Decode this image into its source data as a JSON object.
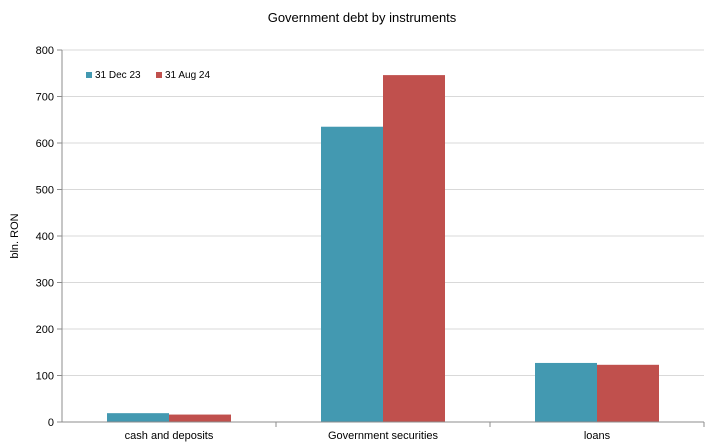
{
  "chart_data": {
    "type": "bar",
    "title": "Government debt by instruments",
    "ylabel": "bln. RON",
    "xlabel": "",
    "categories": [
      "cash and deposits",
      "Government securities",
      "loans"
    ],
    "series": [
      {
        "name": "31 Dec 23",
        "color": "#4399b1",
        "values": [
          19,
          635,
          127
        ]
      },
      {
        "name": "31 Aug 24",
        "color": "#c0504d",
        "values": [
          16,
          746,
          123
        ]
      }
    ],
    "ylim": [
      0,
      800
    ],
    "yticks": [
      "0",
      "100",
      "200",
      "300",
      "400",
      "500",
      "600",
      "700",
      "800"
    ],
    "grid": true,
    "legend_position": "top-left"
  }
}
